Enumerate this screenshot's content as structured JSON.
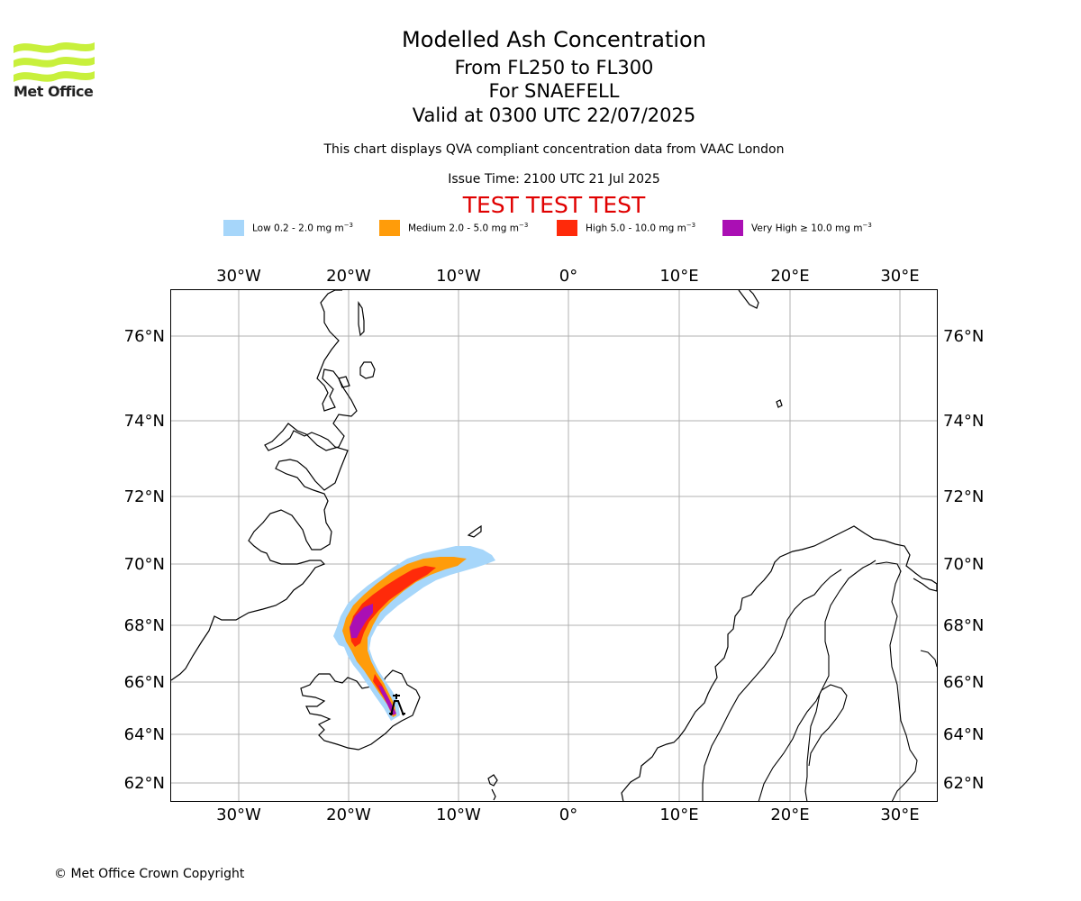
{
  "header": {
    "title": "Modelled Ash Concentration",
    "levels": "From FL250 to FL300",
    "volcano": "For SNAEFELL",
    "valid": "Valid at 0300 UTC 22/07/2025",
    "note": "This chart displays QVA compliant concentration data from VAAC London",
    "issue": "Issue Time: 2100 UTC 21 Jul 2025",
    "test_banner": "TEST TEST TEST"
  },
  "logo": {
    "text": "Met Office",
    "color": "#c8f03c"
  },
  "legend": [
    {
      "label": "Low 0.2 - 2.0 mg m",
      "color": "#a6d6fa"
    },
    {
      "label": "Medium 2.0 - 5.0 mg m",
      "color": "#ff9c0a"
    },
    {
      "label": "High 5.0 - 10.0 mg m",
      "color": "#ff2a0a"
    },
    {
      "label": "Very High ≥ 10.0 mg m",
      "color": "#aa0fb4"
    }
  ],
  "legend_unit_exp": "−3",
  "map": {
    "lon_ticks": [
      "30°W",
      "20°W",
      "10°W",
      "0°",
      "10°E",
      "20°E",
      "30°E"
    ],
    "lat_ticks": [
      "76°N",
      "74°N",
      "72°N",
      "70°N",
      "68°N",
      "66°N",
      "64°N",
      "62°N"
    ],
    "grid": true,
    "volcano_marker": "Snaefell"
  },
  "footer": {
    "copyright": "© Met Office Crown Copyright"
  }
}
